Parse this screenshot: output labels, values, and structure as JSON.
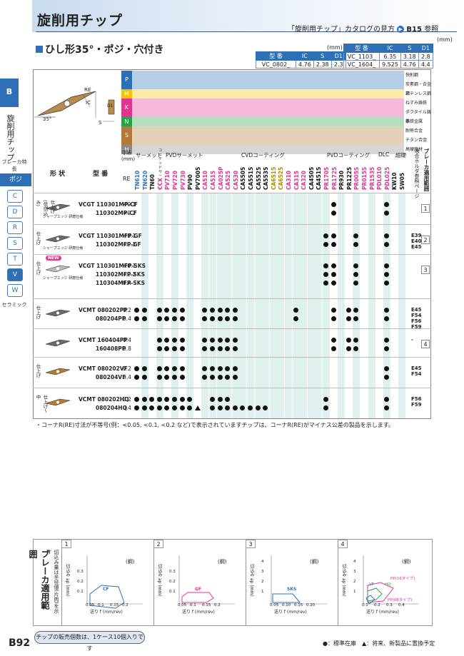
{
  "header": {
    "title": "旋削用チップ",
    "catalog_link": "「旋削用チップ」カタログの見方",
    "catalog_ref": "B15",
    "catalog_ref_suffix": "参照",
    "subtitle": "ひし形35°・ポジ・穴付き"
  },
  "dims_left": {
    "unit": "(mm)",
    "headers": [
      "型 番",
      "IC",
      "S",
      "D1"
    ],
    "rows": [
      [
        "VC_0802_",
        "4.76",
        "2.38",
        "2.3"
      ]
    ]
  },
  "dims_right": {
    "unit": "(mm)",
    "headers": [
      "型 番",
      "IC",
      "S",
      "D1"
    ],
    "rows": [
      [
        "VC_1103_",
        "6.35",
        "3.18",
        "2.8"
      ],
      [
        "VC_1604_",
        "9.525",
        "4.76",
        "4.4"
      ]
    ]
  },
  "sidebar": {
    "section": "B",
    "label": "旋削用チップ",
    "breaker_label": "ブレーカ特長",
    "posi_label": "ポジ",
    "shapes": [
      "C",
      "D",
      "R",
      "S",
      "T",
      "V",
      "W"
    ],
    "ceramic_label": "セラミック"
  },
  "diagram": {
    "re": "RE",
    "ic": "IC",
    "d1": "D1",
    "s": "S",
    "angle": "35°"
  },
  "iso_groups": [
    {
      "code": "P",
      "color": "#2e6fb6",
      "labels": [
        "快削鋼",
        "炭素鋼・合金鋼"
      ]
    },
    {
      "code": "M",
      "color": "#f2c500",
      "labels": [
        "ステンレス鋼"
      ]
    },
    {
      "code": "K",
      "color": "#e0368f",
      "labels": [
        "ねずみ鋳鉄",
        "ダクタイル鋳鉄"
      ]
    },
    {
      "code": "N",
      "color": "#2aa04a",
      "labels": [
        "非鉄金属"
      ]
    },
    {
      "code": "S",
      "color": "#b07a3a",
      "labels": [
        "耐熱合金",
        "チタン合金"
      ]
    },
    {
      "code": "H",
      "color": "#8a8a8a",
      "labels": [
        "高硬度材"
      ]
    }
  ],
  "columns": {
    "shape": "形 状",
    "model": "型 番",
    "re_head": "寸法(mm)",
    "re": "RE",
    "groups": [
      "サーメット",
      "コーテッドサーメット",
      "PVDサーメット",
      "CVDコーティング",
      "PVDコーティング",
      "DLC",
      "超硬"
    ],
    "holder_ref": "適合ホルダ参照ページ",
    "breaker_range": "ブレーカ適用範囲",
    "grades": [
      "TN610",
      "TN620",
      "TN60",
      "CCX",
      "PV710",
      "PV720",
      "PV730",
      "PV90",
      "PV7005",
      "CA510",
      "CA515",
      "CA025P",
      "CA525",
      "CA530",
      "CA5505",
      "CA5515",
      "CA5525",
      "CA5535",
      "CA6515",
      "CA6525",
      "CA310",
      "CA315",
      "CA320",
      "CA4505",
      "CA4515",
      "PR1705",
      "PR1725",
      "PR930",
      "PR1225",
      "PR005S",
      "PR015S",
      "PR1535",
      "PDL010",
      "PDL025",
      "KW10",
      "SW05"
    ]
  },
  "rows": [
    {
      "group": "仕上げ(低切込み)",
      "sub": "シャープエッジ 研磨仕様",
      "models": [
        "VCGT 110301MP-CF",
        "110302MP-CF"
      ],
      "re": [
        "<0.1",
        "<0.2"
      ],
      "holder": "",
      "range": "1"
    },
    {
      "group": "仕上げ",
      "sub": "シャープエッジ 研磨仕様",
      "models": [
        "VCGT 110301MFP-GF",
        "110302MFP-GF"
      ],
      "re": [
        "<0.1",
        "<0.2"
      ],
      "holder": "E39 E40 E45",
      "range": "2"
    },
    {
      "group": "仕上げ",
      "sub": "シャープエッジ 研磨仕様",
      "new": "NEW",
      "models": [
        "VCGT 110301MFP-SKS",
        "110302MFP-SKS",
        "110304MFP-SKS"
      ],
      "re": [
        "<0.1",
        "<0.2",
        "0.4"
      ],
      "holder": "",
      "range": "3"
    },
    {
      "group": "仕上げ",
      "sub": "",
      "models": [
        "VCMT 080202PP",
        "080204PP"
      ],
      "re": [
        "0.2",
        "0.4"
      ],
      "holder": "E45 F54 F56 F59",
      "range": ""
    },
    {
      "group": "",
      "sub": "",
      "models": [
        "VCMT 160404PP",
        "160408PP"
      ],
      "re": [
        "0.4",
        "0.8"
      ],
      "holder": "-",
      "range": "4"
    },
    {
      "group": "仕上げ",
      "sub": "",
      "models": [
        "VCMT 080202VF",
        "080204VF"
      ],
      "re": [
        "0.2",
        "0.4"
      ],
      "holder": "E45 F54",
      "range": ""
    },
    {
      "group": "仕上げ〜中",
      "sub": "",
      "models": [
        "VCMT 080202HQ",
        "080204HQ"
      ],
      "re": [
        "0.2",
        "0.4"
      ],
      "holder": "F56 F59",
      "range": ""
    }
  ],
  "note": "・コーナR(RE)寸法が不等号(例：<0.05, <0.1, <0.2 など)で表示されていますチップは、コーナR(RE)がマイナス公差の製品を示します。",
  "breaker_panel": {
    "title": "ブレーカ適用範囲",
    "subtitle": "切込み量は半径値(片肉)を示す",
    "unit": "(鋼)",
    "xlabel": "送り f (mm/rev)",
    "ylabel": "切込み ap (mm)",
    "charts": [
      {
        "num": "1",
        "label": "CF",
        "xticks": [
          "0.05",
          "0.1",
          "0.15",
          "0.2"
        ],
        "yticks": [
          "0.1",
          "0.2",
          "0.3"
        ]
      },
      {
        "num": "2",
        "label": "GF",
        "xticks": [
          "0.05",
          "0.1",
          "0.15",
          "0.2"
        ],
        "yticks": [
          "0.1",
          "0.2",
          "0.3"
        ]
      },
      {
        "num": "3",
        "label": "SKS",
        "xticks": [
          "0.05",
          "0.10",
          "0.15",
          "0.20"
        ],
        "yticks": [
          "1",
          "2",
          "3",
          "4"
        ]
      },
      {
        "num": "4",
        "labels": [
          "PP(16タイプ)",
          "HQ",
          "VF",
          "PP(08タイプ)"
        ],
        "xticks": [
          "0.1",
          "0.2",
          "0.3",
          "0.4"
        ],
        "yticks": [
          "1",
          "2",
          "3",
          "4"
        ]
      }
    ]
  },
  "footer": {
    "page": "B92",
    "note": "チップの販売個数は、1ケース10個入りです",
    "legend": "●：標準在庫　▲：将来、新製品に置換予定"
  }
}
